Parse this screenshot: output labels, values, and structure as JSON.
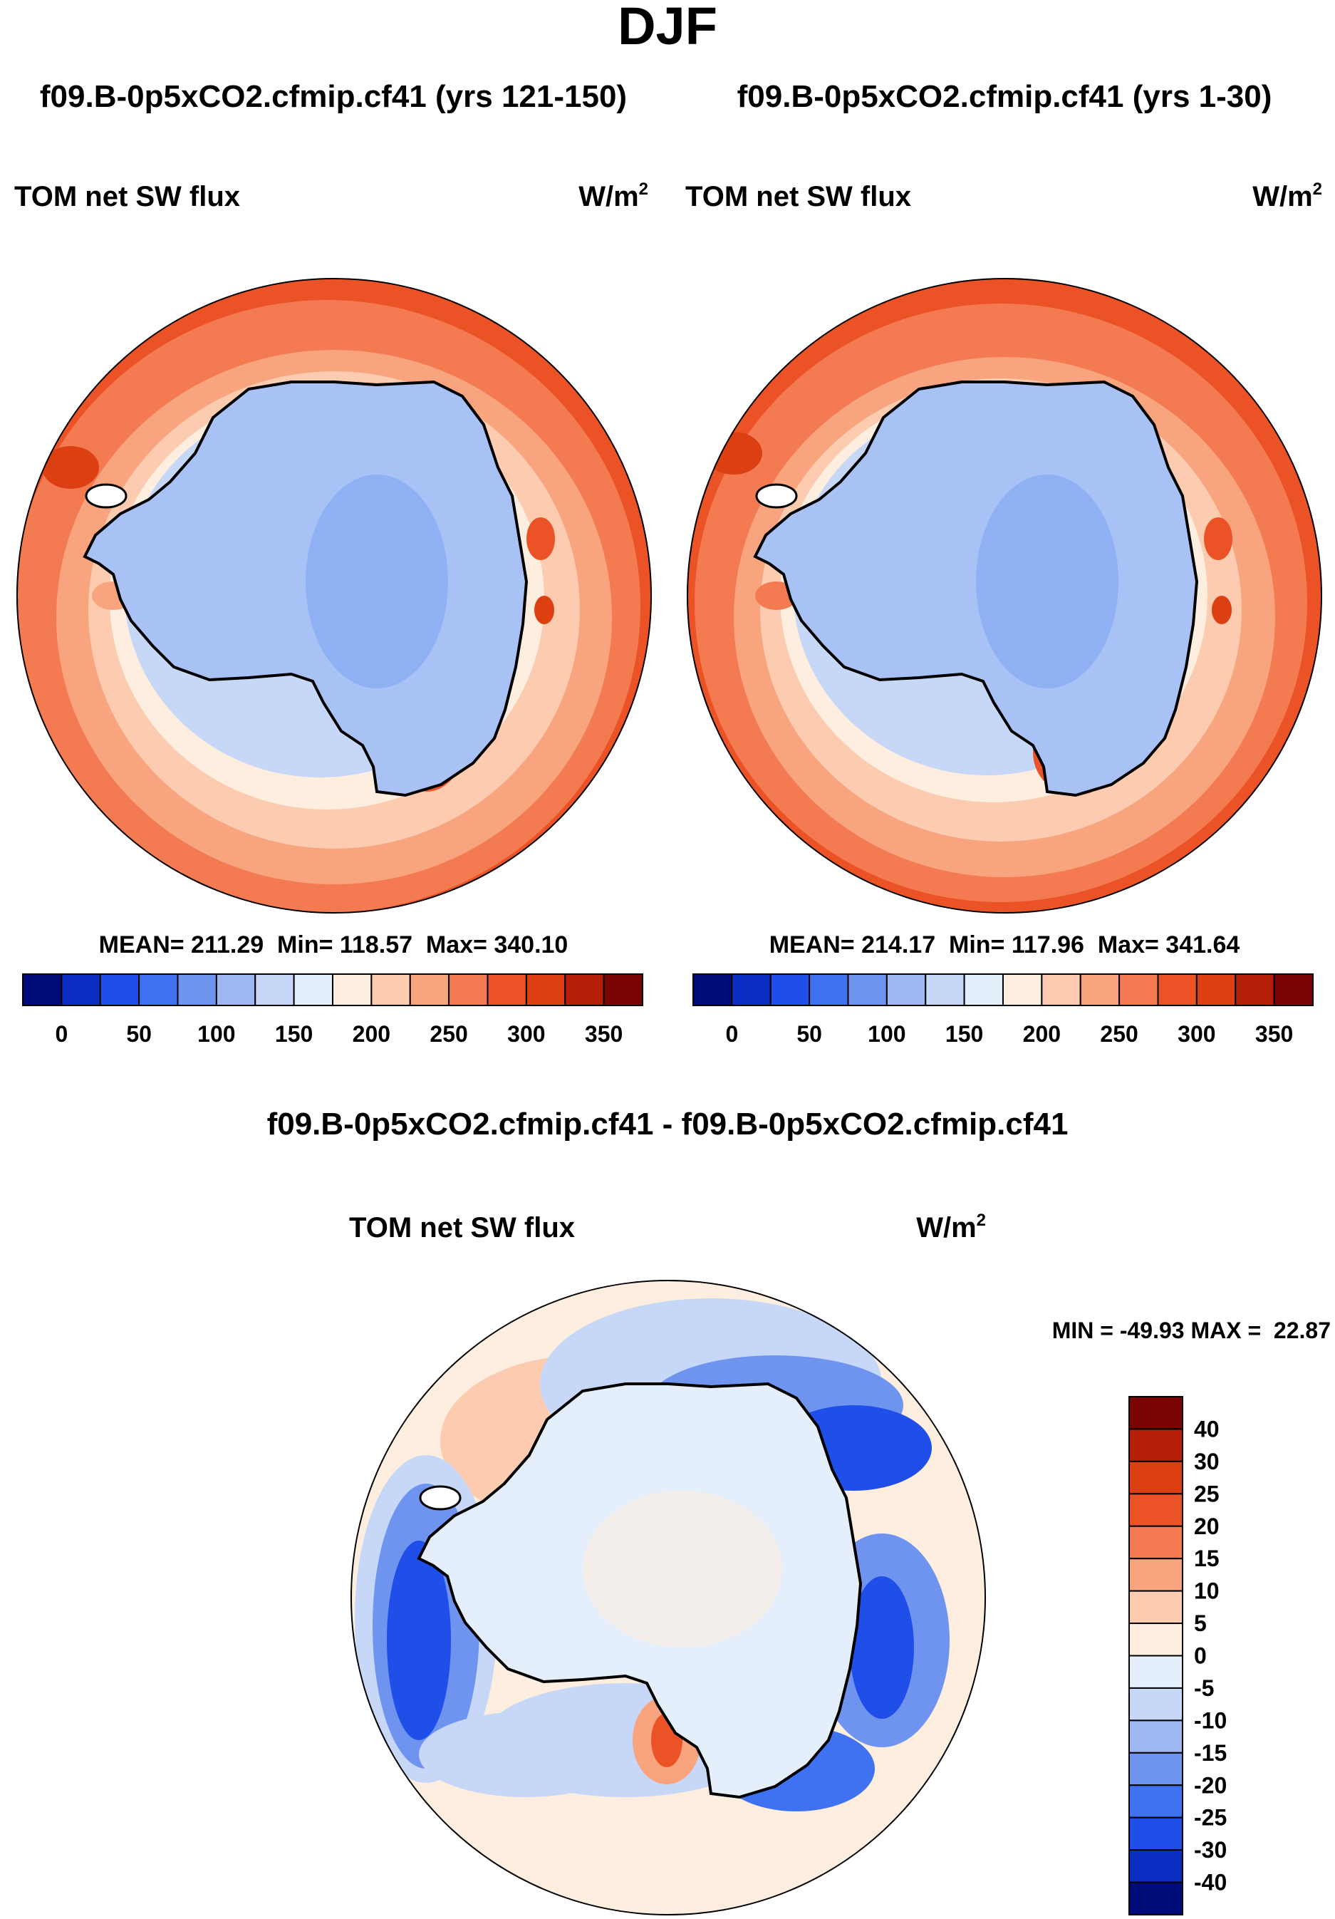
{
  "figure": {
    "season": "DJF",
    "difference_title": "f09.B-0p5xCO2.cfmip.cf41 - f09.B-0p5xCO2.cfmip.cf41",
    "colors": {
      "full_palette": [
        "#000b7a",
        "#0a2ec2",
        "#1f4fe8",
        "#3f72f0",
        "#6f94f0",
        "#9fb8f4",
        "#c6d7f8",
        "#e5eefb",
        "#fdeedf",
        "#fccbb0",
        "#f8a47f",
        "#f47a52",
        "#eb5226",
        "#dc3f12",
        "#b51e08",
        "#7a0303"
      ],
      "diff_palette": [
        "#000b7a",
        "#0a2ec2",
        "#1f4fe8",
        "#3f72f0",
        "#6f94f0",
        "#9fb8f4",
        "#c6d7f8",
        "#e5eefb",
        "#fdeedf",
        "#fccbb0",
        "#f8a47f",
        "#f47a52",
        "#eb5226",
        "#dc3f12",
        "#b51e08",
        "#7a0303"
      ],
      "antarctica_fill": "#a8c2f5",
      "coast": "#000000"
    }
  },
  "panels": [
    {
      "title": "f09.B-0p5xCO2.cfmip.cf41 (yrs 121-150)",
      "variable": "TOM net SW flux",
      "units": "W/m",
      "units_exp": "2",
      "stats": "MEAN= 211.29  Min= 118.57  Max= 340.10",
      "colorbar_labels": [
        "0",
        "50",
        "100",
        "150",
        "200",
        "250",
        "300",
        "350"
      ]
    },
    {
      "title": "f09.B-0p5xCO2.cfmip.cf41 (yrs 1-30)",
      "variable": "TOM net SW flux",
      "units": "W/m",
      "units_exp": "2",
      "stats": "MEAN= 214.17  Min= 117.96  Max= 341.64",
      "colorbar_labels": [
        "0",
        "50",
        "100",
        "150",
        "200",
        "250",
        "300",
        "350"
      ]
    }
  ],
  "difference_panel": {
    "variable": "TOM net SW flux",
    "units": "W/m",
    "units_exp": "2",
    "stats": "MIN = -49.93 MAX =  22.87",
    "colorbar_labels": [
      "40",
      "30",
      "25",
      "20",
      "15",
      "10",
      "5",
      "0",
      "-5",
      "-10",
      "-15",
      "-20",
      "-25",
      "-30",
      "-40"
    ]
  }
}
